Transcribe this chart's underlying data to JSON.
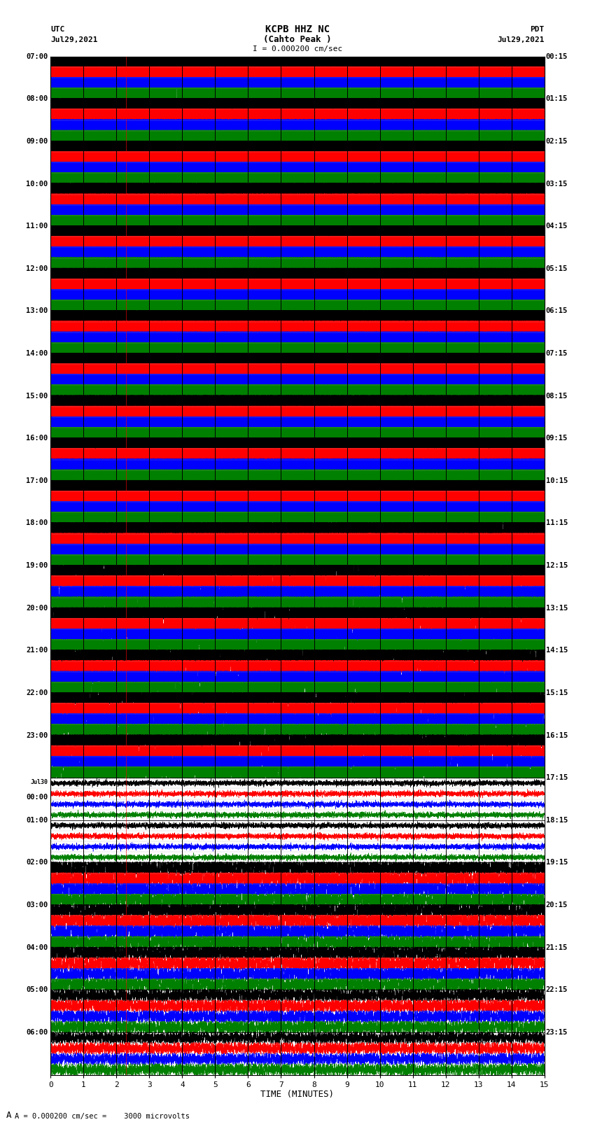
{
  "title_line1": "KCPB HHZ NC",
  "title_line2": "(Cahto Peak )",
  "scale_text_top": "I = 0.000200 cm/sec",
  "left_label": "UTC",
  "left_date": "Jul29,2021",
  "right_label": "PDT",
  "right_date": "Jul29,2021",
  "xlabel": "TIME (MINUTES)",
  "bottom_note": "A = 0.000200 cm/sec =    3000 microvolts",
  "xmin": 0,
  "xmax": 15,
  "utc_times": [
    "07:00",
    "08:00",
    "09:00",
    "10:00",
    "11:00",
    "12:00",
    "13:00",
    "14:00",
    "15:00",
    "16:00",
    "17:00",
    "18:00",
    "19:00",
    "20:00",
    "21:00",
    "22:00",
    "23:00",
    "Jul30\n00:00",
    "01:00",
    "02:00",
    "03:00",
    "04:00",
    "05:00",
    "06:00"
  ],
  "pdt_times": [
    "00:15",
    "01:15",
    "02:15",
    "03:15",
    "04:15",
    "05:15",
    "06:15",
    "07:15",
    "08:15",
    "09:15",
    "10:15",
    "11:15",
    "12:15",
    "13:15",
    "14:15",
    "15:15",
    "16:15",
    "17:15",
    "18:15",
    "19:15",
    "20:15",
    "21:15",
    "22:15",
    "23:15"
  ],
  "n_rows": 24,
  "sub_colors": [
    "black",
    "red",
    "blue",
    "green"
  ],
  "bg_color": "white",
  "fig_width": 8.5,
  "fig_height": 16.13,
  "amplitude_profile": [
    2.0,
    2.0,
    2.0,
    1.8,
    1.5,
    1.2,
    1.0,
    0.9,
    0.8,
    0.7,
    0.6,
    0.5,
    0.4,
    0.35,
    0.35,
    0.3,
    0.3,
    0.05,
    0.05,
    0.25,
    0.25,
    0.2,
    0.15,
    0.12
  ],
  "n_sub": 4
}
